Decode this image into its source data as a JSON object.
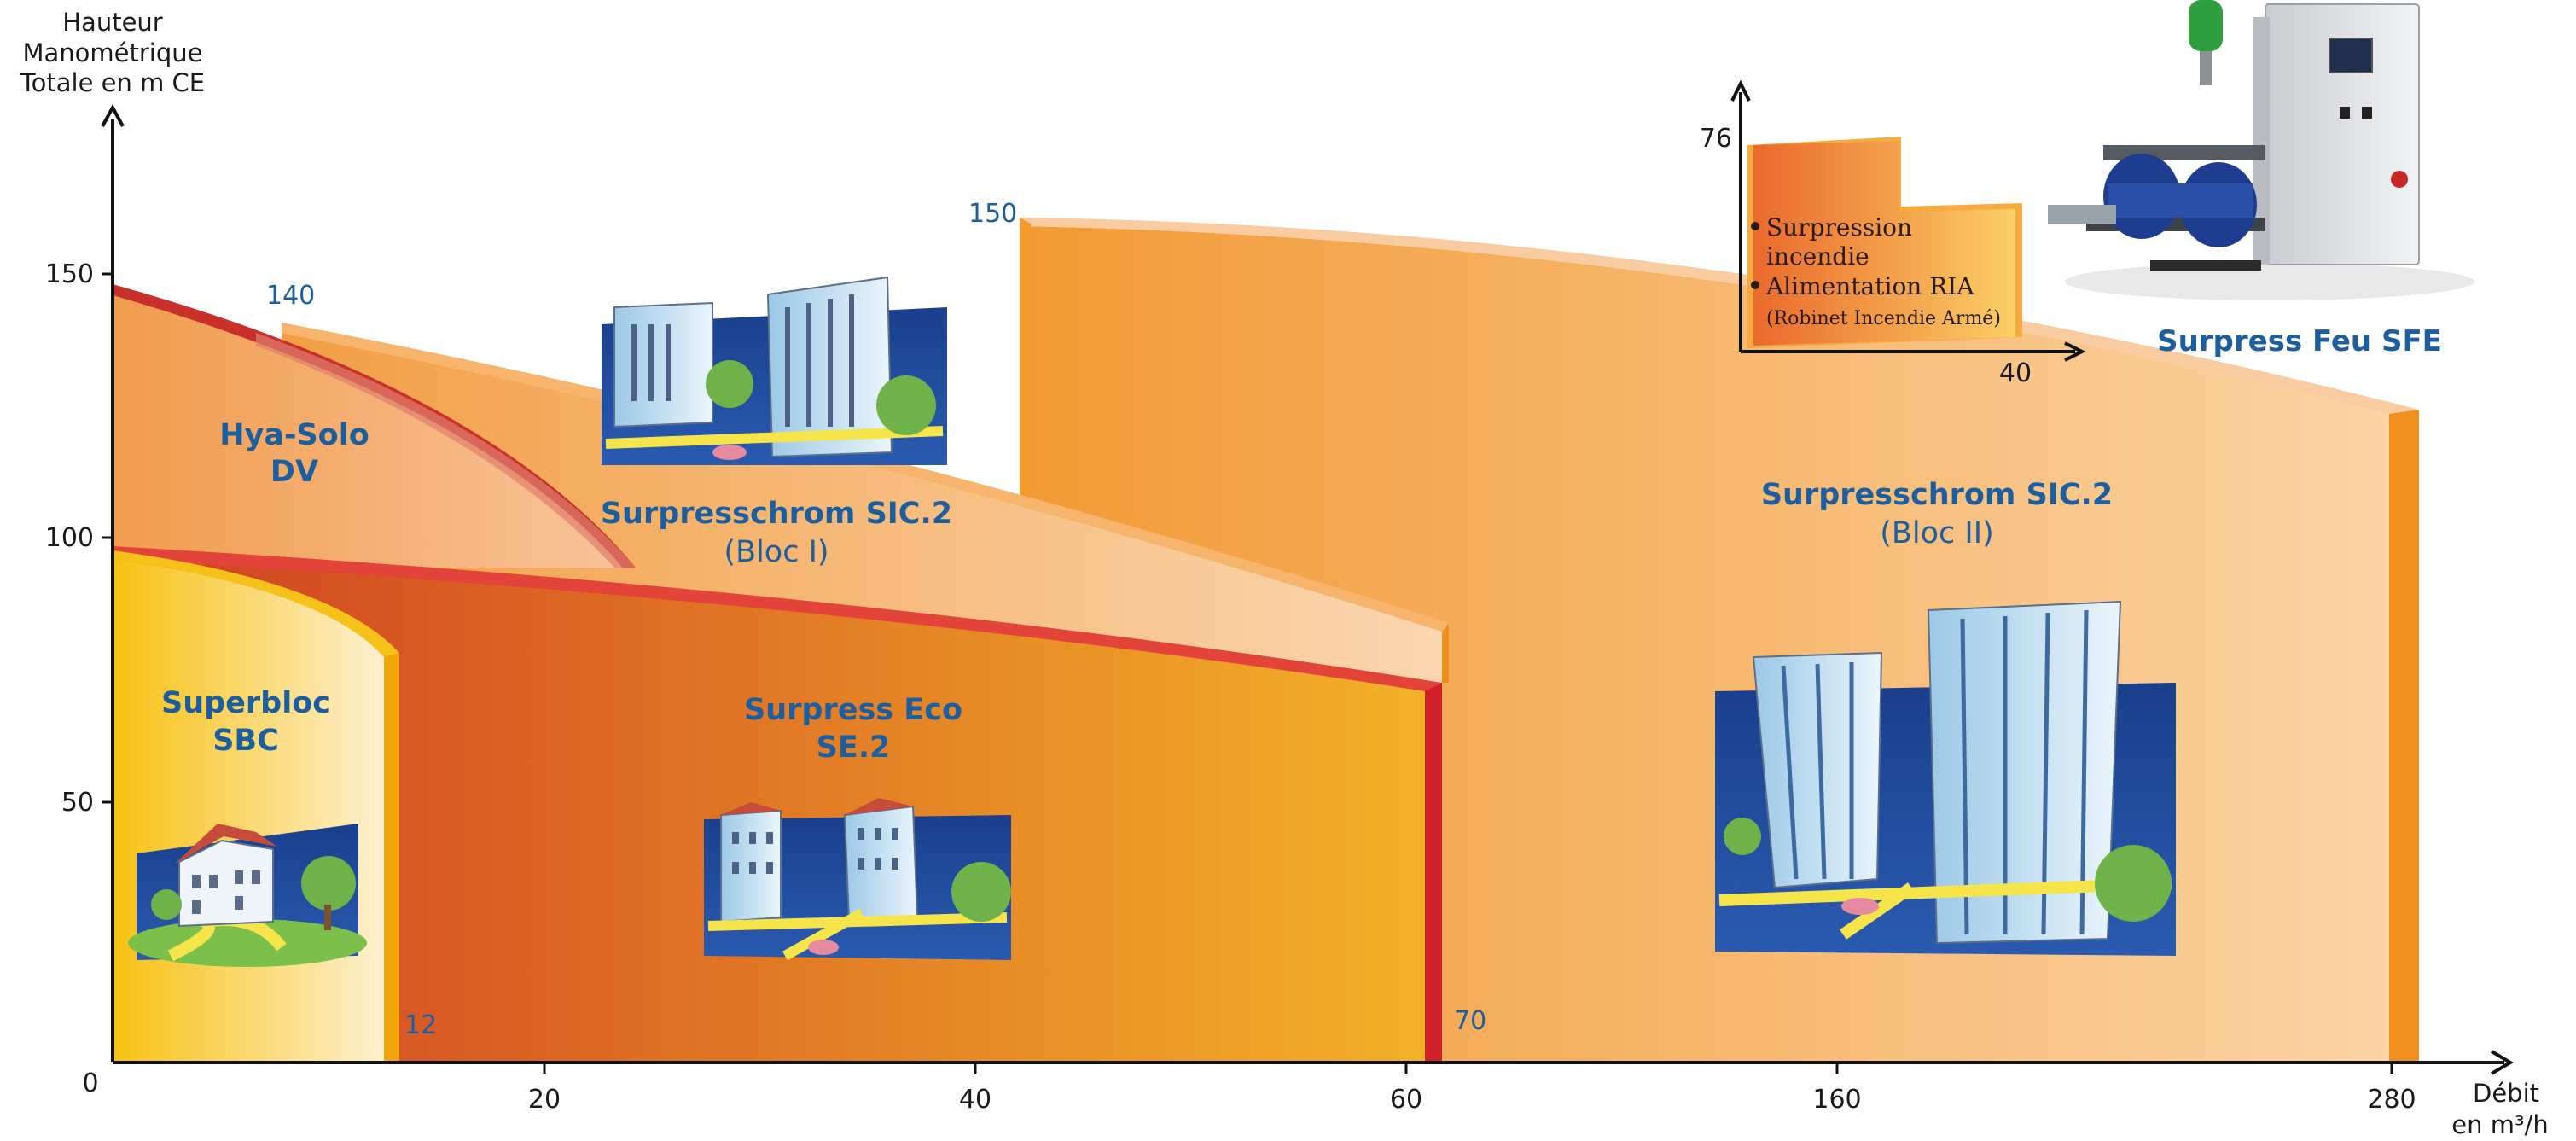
{
  "chart_data": {
    "type": "area",
    "y_axis_label_lines": [
      "Hauteur",
      "Manométrique",
      "Totale en m CE"
    ],
    "x_axis_label_lines": [
      "Débit",
      "en m³/h"
    ],
    "y_ticks": [
      "0",
      "50",
      "100",
      "150"
    ],
    "x_ticks": [
      "20",
      "40",
      "60",
      "160",
      "280"
    ],
    "y_range": [
      0,
      150
    ],
    "grid": false,
    "series": [
      {
        "name": "Superbloc SBC",
        "label_lines": [
          "Superbloc",
          "SBC"
        ],
        "max_flow": "12",
        "max_head": 97,
        "color": "#f6c21a"
      },
      {
        "name": "Hya-Solo DV",
        "label_lines": [
          "Hya-Solo",
          "DV"
        ],
        "max_head": 147,
        "color": "#f2a866"
      },
      {
        "name": "Surpresschrom SIC.2 (Bloc I)",
        "label_lines": [
          "Surpresschrom SIC.2",
          "(Bloc I)"
        ],
        "head_marker": "140",
        "color": "#f8c891"
      },
      {
        "name": "Surpress Eco SE.2",
        "label_lines": [
          "Surpress Eco",
          "SE.2"
        ],
        "max_flow": "70",
        "max_head": 98,
        "color": "#d8542a"
      },
      {
        "name": "Surpresschrom SIC.2 (Bloc II)",
        "label_lines": [
          "Surpresschrom SIC.2",
          "(Bloc II)"
        ],
        "head_marker": "150",
        "color": "#f5a243"
      }
    ],
    "annotations": {
      "head_140": "140",
      "head_150": "150",
      "flow_12": "12",
      "flow_70": "70"
    }
  },
  "inset": {
    "y_value": "76",
    "x_value": "40",
    "bullets": [
      "Surpression incendie",
      "Alimentation RIA"
    ],
    "bullet_lines": [
      [
        "Surpression",
        "incendie"
      ],
      [
        "Alimentation RIA"
      ]
    ],
    "note": "(Robinet Incendie Armé)"
  },
  "product_caption": "Surpress Feu SFE",
  "colors": {
    "label_blue": "#1d5f9e",
    "orange_light": "#f8c891",
    "orange": "#f5a243",
    "red": "#d8542a",
    "yellow": "#f6c21a"
  }
}
